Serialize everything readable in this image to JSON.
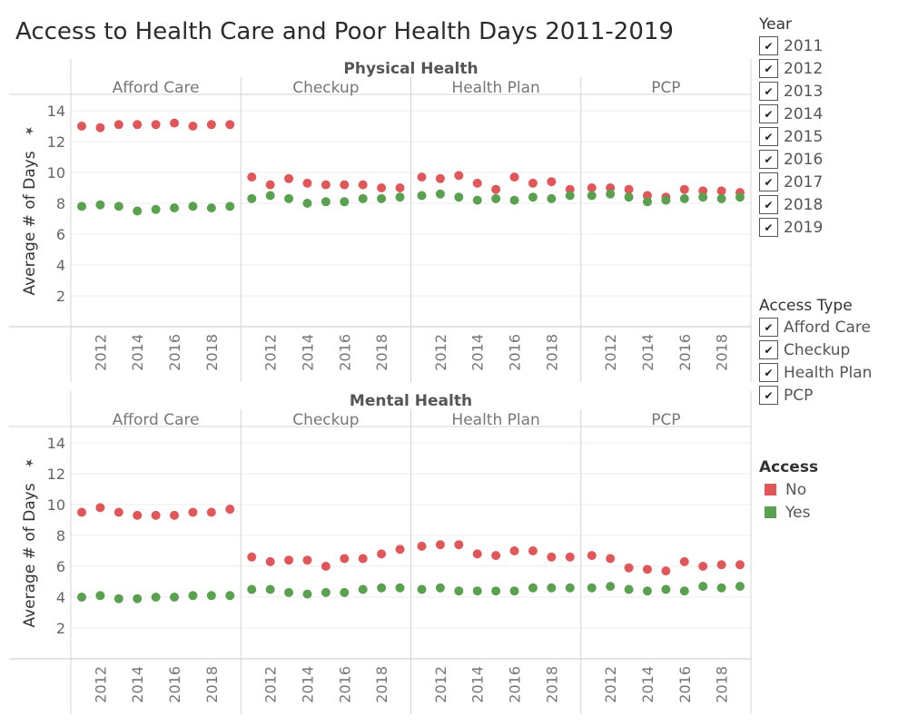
{
  "title": "Access to Health Care and Poor Health Days 2011-2019",
  "filters": {
    "year": {
      "title": "Year",
      "items": [
        "2011",
        "2012",
        "2013",
        "2014",
        "2015",
        "2016",
        "2017",
        "2018",
        "2019"
      ],
      "check_mark": "✔"
    },
    "access_type": {
      "title": "Access Type",
      "items": [
        "Afford Care",
        "Checkup",
        "Health Plan",
        "PCP"
      ],
      "check_mark": "✔"
    }
  },
  "legend": {
    "title": "Access",
    "items": [
      {
        "label": "No",
        "color": "#e15759"
      },
      {
        "label": "Yes",
        "color": "#59a14f"
      }
    ]
  },
  "chart_data": {
    "type": "scatter",
    "ylabel": "Average # of Days",
    "ylim": [
      0,
      14
    ],
    "yticks": [
      2,
      4,
      6,
      8,
      10,
      12,
      14
    ],
    "x": [
      2011,
      2012,
      2013,
      2014,
      2015,
      2016,
      2017,
      2018,
      2019
    ],
    "xtick_labels": [
      "2012",
      "2014",
      "2016",
      "2018"
    ],
    "grid": true,
    "legend_position": "right",
    "colors": {
      "No": "#e15759",
      "Yes": "#59a14f"
    },
    "panels": [
      {
        "row": "Physical Health",
        "columns": [
          {
            "name": "Afford Care",
            "series": [
              {
                "name": "No",
                "values": [
                  13.0,
                  12.9,
                  13.1,
                  13.1,
                  13.1,
                  13.2,
                  13.0,
                  13.1,
                  13.1
                ]
              },
              {
                "name": "Yes",
                "values": [
                  7.8,
                  7.9,
                  7.8,
                  7.5,
                  7.6,
                  7.7,
                  7.8,
                  7.7,
                  7.8
                ]
              }
            ]
          },
          {
            "name": "Checkup",
            "series": [
              {
                "name": "No",
                "values": [
                  9.7,
                  9.2,
                  9.6,
                  9.3,
                  9.2,
                  9.2,
                  9.2,
                  9.0,
                  9.0
                ]
              },
              {
                "name": "Yes",
                "values": [
                  8.3,
                  8.5,
                  8.3,
                  8.0,
                  8.1,
                  8.1,
                  8.3,
                  8.3,
                  8.4
                ]
              }
            ]
          },
          {
            "name": "Health Plan",
            "series": [
              {
                "name": "No",
                "values": [
                  9.7,
                  9.6,
                  9.8,
                  9.3,
                  8.9,
                  9.7,
                  9.3,
                  9.4,
                  8.9
                ]
              },
              {
                "name": "Yes",
                "values": [
                  8.5,
                  8.6,
                  8.4,
                  8.2,
                  8.3,
                  8.2,
                  8.4,
                  8.3,
                  8.5
                ]
              }
            ]
          },
          {
            "name": "PCP",
            "series": [
              {
                "name": "No",
                "values": [
                  9.0,
                  9.0,
                  8.9,
                  8.5,
                  8.4,
                  8.9,
                  8.8,
                  8.8,
                  8.7
                ]
              },
              {
                "name": "Yes",
                "values": [
                  8.5,
                  8.6,
                  8.4,
                  8.1,
                  8.2,
                  8.3,
                  8.4,
                  8.3,
                  8.4
                ]
              }
            ]
          }
        ]
      },
      {
        "row": "Mental Health",
        "columns": [
          {
            "name": "Afford Care",
            "series": [
              {
                "name": "No",
                "values": [
                  9.5,
                  9.8,
                  9.5,
                  9.3,
                  9.3,
                  9.3,
                  9.5,
                  9.5,
                  9.7
                ]
              },
              {
                "name": "Yes",
                "values": [
                  4.0,
                  4.1,
                  3.9,
                  3.9,
                  4.0,
                  4.0,
                  4.1,
                  4.1,
                  4.1
                ]
              }
            ]
          },
          {
            "name": "Checkup",
            "series": [
              {
                "name": "No",
                "values": [
                  6.6,
                  6.3,
                  6.4,
                  6.4,
                  6.0,
                  6.5,
                  6.5,
                  6.8,
                  7.1
                ]
              },
              {
                "name": "Yes",
                "values": [
                  4.5,
                  4.5,
                  4.3,
                  4.2,
                  4.3,
                  4.3,
                  4.5,
                  4.6,
                  4.6
                ]
              }
            ]
          },
          {
            "name": "Health Plan",
            "series": [
              {
                "name": "No",
                "values": [
                  7.3,
                  7.4,
                  7.4,
                  6.8,
                  6.7,
                  7.0,
                  7.0,
                  6.6,
                  6.6
                ]
              },
              {
                "name": "Yes",
                "values": [
                  4.5,
                  4.6,
                  4.4,
                  4.4,
                  4.4,
                  4.4,
                  4.6,
                  4.6,
                  4.6
                ]
              }
            ]
          },
          {
            "name": "PCP",
            "series": [
              {
                "name": "No",
                "values": [
                  6.7,
                  6.5,
                  5.9,
                  5.8,
                  5.7,
                  6.3,
                  6.0,
                  6.1,
                  6.1
                ]
              },
              {
                "name": "Yes",
                "values": [
                  4.6,
                  4.7,
                  4.5,
                  4.4,
                  4.5,
                  4.4,
                  4.7,
                  4.6,
                  4.7
                ]
              }
            ]
          }
        ]
      }
    ]
  }
}
